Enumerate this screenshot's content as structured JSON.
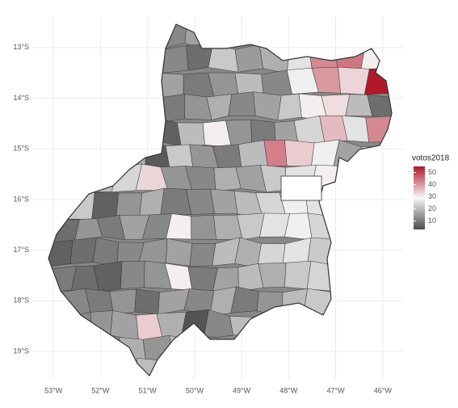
{
  "chart_data": {
    "type": "choropleth",
    "xlim": [
      -53.45,
      -45.55
    ],
    "ylim": [
      -19.56,
      -12.38
    ],
    "grid": true,
    "xticks": [
      {
        "value": -53,
        "label": "53°W"
      },
      {
        "value": -52,
        "label": "52°W"
      },
      {
        "value": -51,
        "label": "51°W"
      },
      {
        "value": -50,
        "label": "50°W"
      },
      {
        "value": -49,
        "label": "49°W"
      },
      {
        "value": -48,
        "label": "48°W"
      },
      {
        "value": -47,
        "label": "47°W"
      },
      {
        "value": -46,
        "label": "46°W"
      }
    ],
    "yticks": [
      {
        "value": -13,
        "label": "13°S"
      },
      {
        "value": -14,
        "label": "14°S"
      },
      {
        "value": -15,
        "label": "15°S"
      },
      {
        "value": -16,
        "label": "16°S"
      },
      {
        "value": -17,
        "label": "17°S"
      },
      {
        "value": -18,
        "label": "18°S"
      },
      {
        "value": -19,
        "label": "19°S"
      }
    ],
    "legend_title": "votos2018",
    "color_lim": [
      3,
      55
    ],
    "color_ticks": [
      10,
      20,
      30,
      40,
      50
    ],
    "colors": [
      "#4d4d4d",
      "#f7f7f7",
      "#b2182b"
    ],
    "values": [
      12,
      16,
      12,
      8,
      22,
      15,
      18,
      26,
      42,
      44,
      30,
      16,
      10,
      14,
      20,
      12,
      28,
      40,
      33,
      55,
      10,
      14,
      18,
      12,
      16,
      22,
      30,
      32,
      20,
      8,
      6,
      20,
      30,
      14,
      10,
      16,
      24,
      36,
      26,
      42,
      18,
      5,
      22,
      14,
      10,
      20,
      43,
      34,
      28,
      16,
      24,
      20,
      24,
      33,
      14,
      12,
      18,
      16,
      22,
      26,
      30,
      22,
      6,
      14,
      18,
      10,
      12,
      16,
      20,
      24,
      28,
      26,
      8,
      14,
      10,
      16,
      12,
      30,
      14,
      18,
      22,
      26,
      28,
      24,
      6,
      8,
      10,
      12,
      14,
      16,
      12,
      20,
      18,
      24,
      26,
      22,
      10,
      8,
      6,
      12,
      14,
      30,
      10,
      16,
      20,
      18,
      22,
      24,
      12,
      10,
      14,
      8,
      16,
      12,
      18,
      10,
      14,
      20,
      22,
      14,
      16,
      34,
      18,
      4,
      12,
      20,
      16,
      18,
      14,
      20,
      16,
      12,
      20
    ]
  }
}
